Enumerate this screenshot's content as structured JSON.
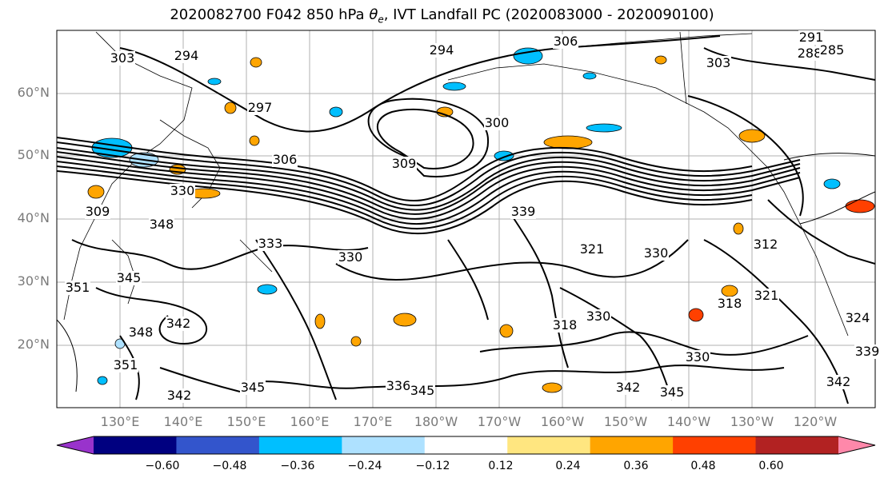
{
  "title": {
    "prefix": "2020082700 F042 850 hPa ",
    "theta": "θ",
    "theta_sub": "e",
    "suffix": ", IVT Landfall PC (2020083000 - 2020090100)"
  },
  "axes": {
    "lat_labels": [
      "60°N",
      "50°N",
      "40°N",
      "30°N",
      "20°N"
    ],
    "lon_labels": [
      "130°E",
      "140°E",
      "150°E",
      "160°E",
      "170°E",
      "180°W",
      "170°W",
      "160°W",
      "150°W",
      "140°W",
      "130°W",
      "120°W"
    ]
  },
  "contour_labels": [
    "306",
    "294",
    "291",
    "288",
    "285",
    "303",
    "294",
    "297",
    "303",
    "300",
    "309",
    "306",
    "309",
    "339",
    "330",
    "333",
    "348",
    "345",
    "351",
    "342",
    "330",
    "321",
    "312",
    "318",
    "321",
    "318",
    "330",
    "324",
    "339",
    "345",
    "342",
    "345",
    "336",
    "345",
    "342",
    "348",
    "351",
    "342",
    "330",
    "330"
  ],
  "colorbar": {
    "colors": [
      "#9933cc",
      "#000080",
      "#3355cc",
      "#00bfff",
      "#aee1ff",
      "#ffffff",
      "#ffe680",
      "#ffa500",
      "#ff4000",
      "#b22222",
      "#ff88aa"
    ],
    "tick_labels": [
      "−0.60",
      "−0.48",
      "−0.36",
      "−0.24",
      "−0.12",
      "0.12",
      "0.24",
      "0.36",
      "0.48",
      "0.60"
    ]
  }
}
